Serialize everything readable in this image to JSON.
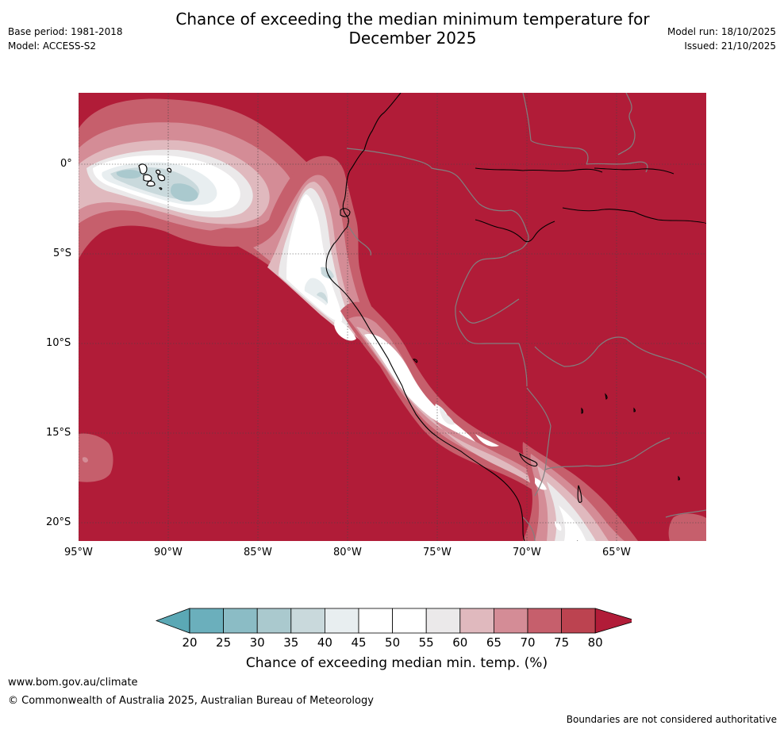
{
  "header": {
    "base_period": "Base period: 1981-2018",
    "model": "Model: ACCESS-S2",
    "title_line1": "Chance of exceeding the median minimum temperature for",
    "title_line2": "December 2025",
    "model_run": "Model run: 18/10/2025",
    "issued": "Issued: 21/10/2025"
  },
  "map": {
    "lat_ticks": [
      "0°",
      "5°S",
      "10°S",
      "15°S",
      "20°S"
    ],
    "lon_ticks": [
      "95°W",
      "90°W",
      "85°W",
      "80°W",
      "75°W",
      "70°W",
      "65°W"
    ],
    "background_color": "#b11c38",
    "regions": [
      "galapagos-anomaly",
      "peru-coastal-anomaly",
      "southern-coastal-anomaly",
      "south-west-patch",
      "south-east-patch"
    ]
  },
  "colorbar": {
    "labels": [
      "20",
      "25",
      "30",
      "35",
      "40",
      "45",
      "50",
      "55",
      "60",
      "65",
      "70",
      "75",
      "80"
    ],
    "colors": [
      "#5ba8b5",
      "#6bafbc",
      "#8bbcc5",
      "#aac9ce",
      "#c9d9dc",
      "#e8eef0",
      "#ffffff",
      "#ffffff",
      "#ebe9ea",
      "#e0b9be",
      "#d48c96",
      "#c65f6c",
      "#bc4350",
      "#b11c38"
    ],
    "title": "Chance of exceeding median min. temp. (%)"
  },
  "footer": {
    "url": "www.bom.gov.au/climate",
    "copyright": "© Commonwealth of Australia 2025, Australian Bureau of Meteorology",
    "disclaimer": "Boundaries are not considered authoritative"
  }
}
